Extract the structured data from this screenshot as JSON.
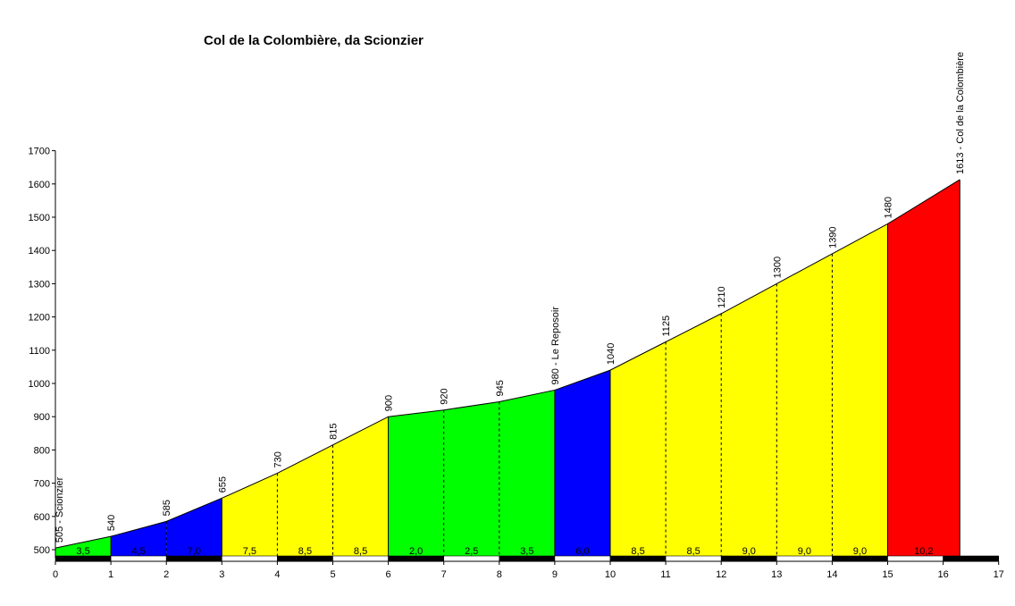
{
  "chart_data": {
    "type": "area",
    "title": "Col de la Colombière, da Scionzier",
    "xlim": [
      0,
      17
    ],
    "ylim": [
      475,
      1700
    ],
    "x_ticks": [
      0,
      1,
      2,
      3,
      4,
      5,
      6,
      7,
      8,
      9,
      10,
      11,
      12,
      13,
      14,
      15,
      16,
      17
    ],
    "y_ticks": [
      500,
      600,
      700,
      800,
      900,
      1000,
      1100,
      1200,
      1300,
      1400,
      1500,
      1600,
      1700
    ],
    "profile_points": [
      {
        "x": 0,
        "y": 505,
        "label": "505 - Scionzier"
      },
      {
        "x": 1,
        "y": 540,
        "label": "540"
      },
      {
        "x": 2,
        "y": 585,
        "label": "585"
      },
      {
        "x": 3,
        "y": 655,
        "label": "655"
      },
      {
        "x": 4,
        "y": 730,
        "label": "730"
      },
      {
        "x": 5,
        "y": 815,
        "label": "815"
      },
      {
        "x": 6,
        "y": 900,
        "label": "900"
      },
      {
        "x": 7,
        "y": 920,
        "label": "920"
      },
      {
        "x": 8,
        "y": 945,
        "label": "945"
      },
      {
        "x": 9,
        "y": 980,
        "label": "980 - Le Reposoir"
      },
      {
        "x": 10,
        "y": 1040,
        "label": "1040"
      },
      {
        "x": 11,
        "y": 1125,
        "label": "1125"
      },
      {
        "x": 12,
        "y": 1210,
        "label": "1210"
      },
      {
        "x": 13,
        "y": 1300,
        "label": "1300"
      },
      {
        "x": 14,
        "y": 1390,
        "label": "1390"
      },
      {
        "x": 15,
        "y": 1480,
        "label": "1480"
      },
      {
        "x": 16.3,
        "y": 1613,
        "label": "1613 - Col de la Colombière"
      }
    ],
    "segments": [
      {
        "from": 0,
        "to": 1,
        "gradient": "3,5",
        "color": "#00ff00"
      },
      {
        "from": 1,
        "to": 2,
        "gradient": "4,5",
        "color": "#0000ff"
      },
      {
        "from": 2,
        "to": 3,
        "gradient": "7,0",
        "color": "#0000ff"
      },
      {
        "from": 3,
        "to": 4,
        "gradient": "7,5",
        "color": "#ffff00"
      },
      {
        "from": 4,
        "to": 5,
        "gradient": "8,5",
        "color": "#ffff00"
      },
      {
        "from": 5,
        "to": 6,
        "gradient": "8,5",
        "color": "#ffff00"
      },
      {
        "from": 6,
        "to": 7,
        "gradient": "2,0",
        "color": "#00ff00"
      },
      {
        "from": 7,
        "to": 8,
        "gradient": "2,5",
        "color": "#00ff00"
      },
      {
        "from": 8,
        "to": 9,
        "gradient": "3,5",
        "color": "#00ff00"
      },
      {
        "from": 9,
        "to": 10,
        "gradient": "6,0",
        "color": "#0000ff"
      },
      {
        "from": 10,
        "to": 11,
        "gradient": "8,5",
        "color": "#ffff00"
      },
      {
        "from": 11,
        "to": 12,
        "gradient": "8,5",
        "color": "#ffff00"
      },
      {
        "from": 12,
        "to": 13,
        "gradient": "9,0",
        "color": "#ffff00"
      },
      {
        "from": 13,
        "to": 14,
        "gradient": "9,0",
        "color": "#ffff00"
      },
      {
        "from": 14,
        "to": 15,
        "gradient": "9,0",
        "color": "#ffff00"
      },
      {
        "from": 15,
        "to": 16.3,
        "gradient": "10,2",
        "color": "#ff0000"
      }
    ],
    "grid": false
  }
}
